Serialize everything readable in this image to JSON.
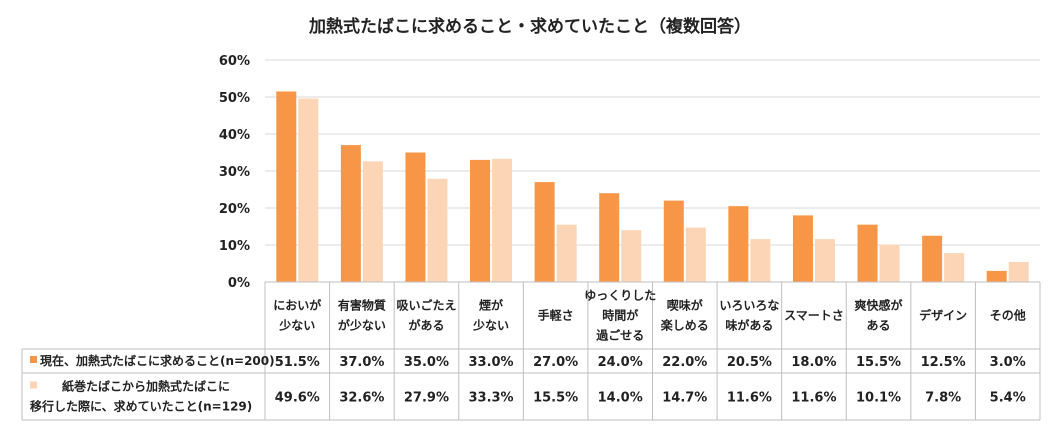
{
  "chart_data": {
    "type": "bar",
    "title": "加熱式たばこに求めること・求めていたこと（複数回答）",
    "xlabel": "",
    "ylabel": "",
    "ylim": [
      0,
      60
    ],
    "yticks": [
      0,
      10,
      20,
      30,
      40,
      50,
      60
    ],
    "ytick_labels": [
      "0%",
      "10%",
      "20%",
      "30%",
      "40%",
      "50%",
      "60%"
    ],
    "grid": true,
    "categories": [
      [
        "においが",
        "少ない"
      ],
      [
        "有害物質",
        "が少ない"
      ],
      [
        "吸いごたえ",
        "がある"
      ],
      [
        "煙が",
        "少ない"
      ],
      [
        "手軽さ"
      ],
      [
        "ゆっくりした",
        "時間が",
        "過ごせる"
      ],
      [
        "喫味が",
        "楽しめる"
      ],
      [
        "いろいろな",
        "味がある"
      ],
      [
        "スマートさ"
      ],
      [
        "爽快感が",
        "ある"
      ],
      [
        "デザイン"
      ],
      [
        "その他"
      ]
    ],
    "series": [
      {
        "name_lines": [
          "現在、加熱式たばこに求めること(n=200)"
        ],
        "color": "#F79646",
        "values": [
          51.5,
          37.0,
          35.0,
          33.0,
          27.0,
          24.0,
          22.0,
          20.5,
          18.0,
          15.5,
          12.5,
          3.0
        ],
        "labels": [
          "51.5%",
          "37.0%",
          "35.0%",
          "33.0%",
          "27.0%",
          "24.0%",
          "22.0%",
          "20.5%",
          "18.0%",
          "15.5%",
          "12.5%",
          "3.0%"
        ]
      },
      {
        "name_lines": [
          "紙巻たばこから加熱式たばこに",
          "移行した際に、求めていたこと(n=129)"
        ],
        "color": "#FBD5B5",
        "values": [
          49.6,
          32.6,
          27.9,
          33.3,
          15.5,
          14.0,
          14.7,
          11.6,
          11.6,
          10.1,
          7.8,
          5.4
        ],
        "labels": [
          "49.6%",
          "32.6%",
          "27.9%",
          "33.3%",
          "15.5%",
          "14.0%",
          "14.7%",
          "11.6%",
          "11.6%",
          "10.1%",
          "7.8%",
          "5.4%"
        ]
      }
    ]
  }
}
